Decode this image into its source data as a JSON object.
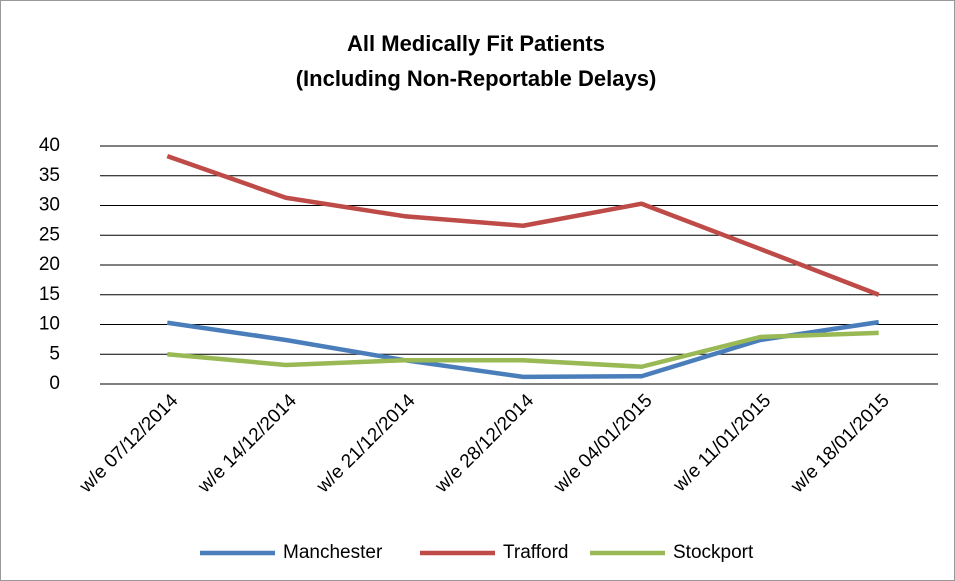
{
  "chart_data": {
    "type": "line",
    "title": [
      "All Medically Fit Patients",
      "(Including Non-Reportable Delays)"
    ],
    "categories": [
      "w/e 07/12/2014",
      "w/e 14/12/2014",
      "w/e 21/12/2014",
      "w/e 28/12/2014",
      "w/e 04/01/2015",
      "w/e 11/01/2015",
      "w/e 18/01/2015"
    ],
    "series": [
      {
        "name": "Manchester",
        "color": "#4a7ebb",
        "values": [
          10.3,
          7.4,
          4,
          1.2,
          1.3,
          7.4,
          10.4
        ]
      },
      {
        "name": "Trafford",
        "color": "#be4b48",
        "values": [
          38.3,
          31.3,
          28.2,
          26.6,
          30.3,
          22.7,
          15
        ]
      },
      {
        "name": "Stockport",
        "color": "#98b954",
        "values": [
          5,
          3.2,
          4,
          4,
          2.9,
          7.9,
          8.6
        ]
      }
    ],
    "ylim": [
      0,
      40
    ],
    "yticks": [
      0,
      5,
      10,
      15,
      20,
      25,
      30,
      35,
      40
    ],
    "grid": true,
    "legend": "bottom"
  }
}
